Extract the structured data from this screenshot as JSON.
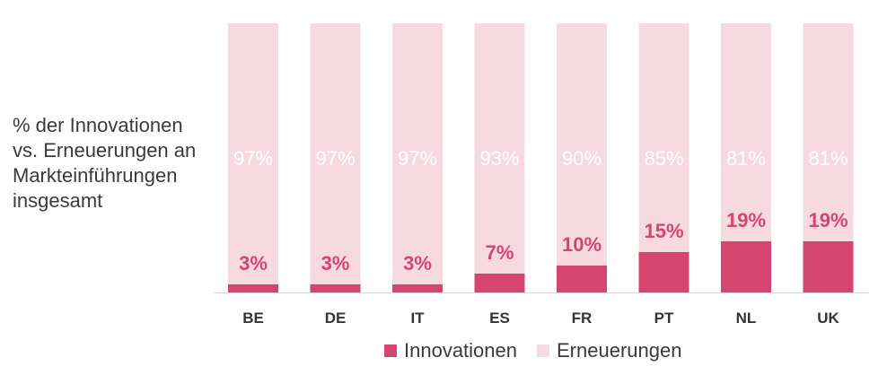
{
  "chart_data": {
    "type": "bar",
    "stacked": true,
    "title": "",
    "ylabel_lines": [
      "% der Innovationen",
      "vs. Erneuerungen an",
      "Markteinführungen",
      "insgesamt"
    ],
    "categories": [
      "BE",
      "DE",
      "IT",
      "ES",
      "FR",
      "PT",
      "NL",
      "UK"
    ],
    "series": [
      {
        "name": "Innovationen",
        "color": "#d6456f",
        "values": [
          3,
          3,
          3,
          7,
          10,
          15,
          19,
          19
        ],
        "labels": [
          "3%",
          "3%",
          "3%",
          "7%",
          "10%",
          "15%",
          "19%",
          "19%"
        ]
      },
      {
        "name": "Erneuerungen",
        "color": "#f7d9e2",
        "values": [
          97,
          97,
          97,
          93,
          90,
          85,
          81,
          81
        ],
        "labels": [
          "97%",
          "97%",
          "97%",
          "93%",
          "90%",
          "85%",
          "81%",
          "81%"
        ]
      }
    ],
    "ylim": [
      0,
      100
    ],
    "grid": false,
    "legend_position": "bottom",
    "innovation_label_color": "#d6456f",
    "renewal_label_color": "#ffffff",
    "tick_label_color": "#333333"
  }
}
